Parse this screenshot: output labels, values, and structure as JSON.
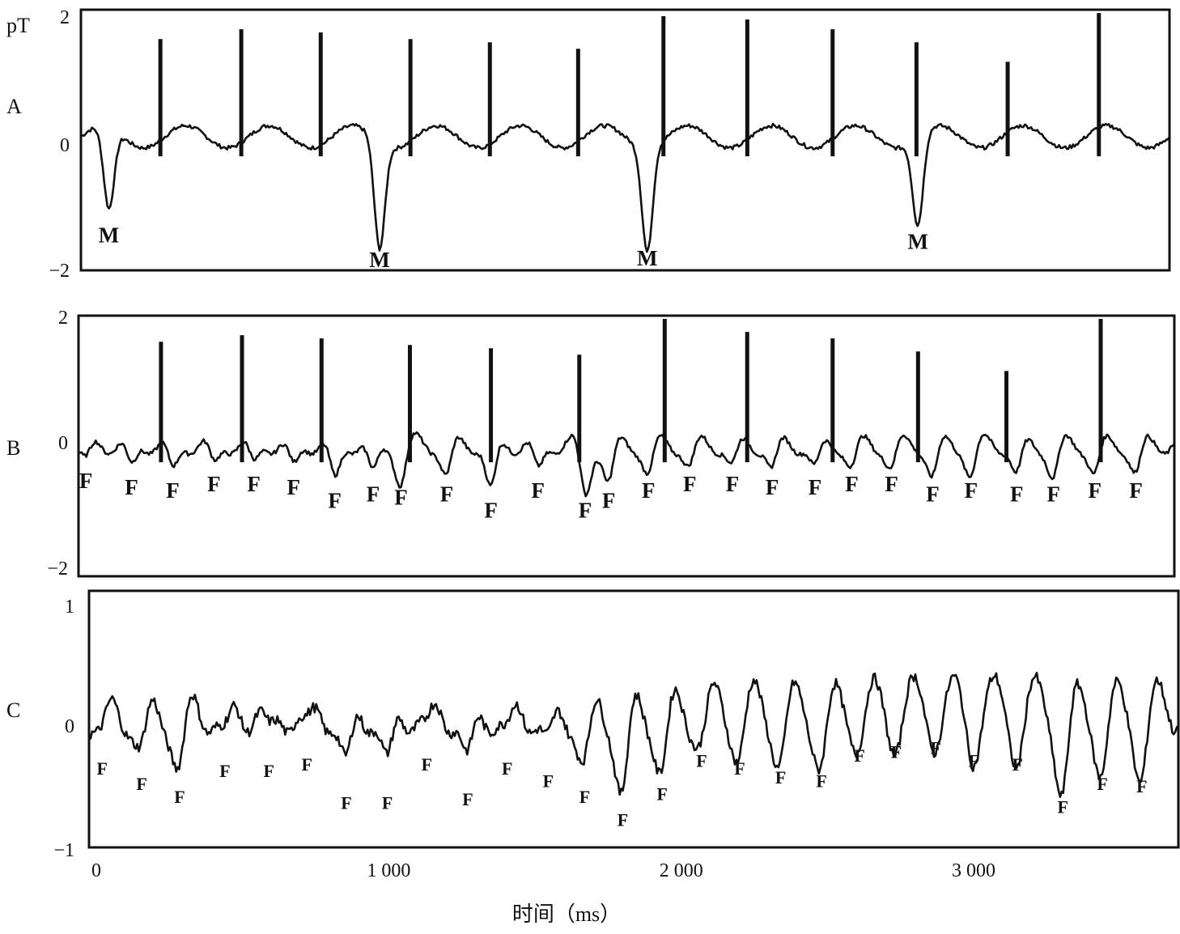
{
  "figure": {
    "unit_label": "pT",
    "xlabel": "时间（ms）",
    "x_ticks": [
      {
        "value": 0,
        "label": "0"
      },
      {
        "value": 1000,
        "label": "1 000"
      },
      {
        "value": 2000,
        "label": "2 000"
      },
      {
        "value": 3000,
        "label": "3 000"
      }
    ]
  },
  "chart_data": [
    {
      "type": "line",
      "panel": "A",
      "ylim": [
        -2,
        2
      ],
      "y_ticks": [
        {
          "value": 2,
          "label": "2"
        },
        {
          "value": 0,
          "label": "0"
        },
        {
          "value": -2,
          "label": "−2"
        }
      ],
      "xlim": [
        0,
        3700
      ],
      "spikes": [
        {
          "x": 270,
          "y": 1.55
        },
        {
          "x": 545,
          "y": 1.7
        },
        {
          "x": 815,
          "y": 1.65
        },
        {
          "x": 1120,
          "y": 1.55
        },
        {
          "x": 1390,
          "y": 1.5
        },
        {
          "x": 1690,
          "y": 1.4
        },
        {
          "x": 1980,
          "y": 1.9
        },
        {
          "x": 2265,
          "y": 1.85
        },
        {
          "x": 2555,
          "y": 1.7
        },
        {
          "x": 2840,
          "y": 1.5
        },
        {
          "x": 3150,
          "y": 1.2
        },
        {
          "x": 3460,
          "y": 1.95
        }
      ],
      "markers": [
        {
          "label": "M",
          "x": 95,
          "y": -1.2
        },
        {
          "label": "M",
          "x": 1015,
          "y": -1.6
        },
        {
          "label": "M",
          "x": 1925,
          "y": -1.55
        },
        {
          "label": "M",
          "x": 2845,
          "y": -1.3
        }
      ]
    },
    {
      "type": "line",
      "panel": "B",
      "ylim": [
        -2,
        2
      ],
      "y_ticks": [
        {
          "value": 2,
          "label": "2"
        },
        {
          "value": 0,
          "label": "0"
        },
        {
          "value": -2,
          "label": "−2"
        }
      ],
      "xlim": [
        0,
        3720
      ],
      "spikes": [
        {
          "x": 280,
          "y": 1.6
        },
        {
          "x": 555,
          "y": 1.7
        },
        {
          "x": 825,
          "y": 1.65
        },
        {
          "x": 1125,
          "y": 1.55
        },
        {
          "x": 1400,
          "y": 1.5
        },
        {
          "x": 1700,
          "y": 1.4
        },
        {
          "x": 1990,
          "y": 1.95
        },
        {
          "x": 2270,
          "y": 1.75
        },
        {
          "x": 2560,
          "y": 1.65
        },
        {
          "x": 2850,
          "y": 1.45
        },
        {
          "x": 3150,
          "y": 1.15
        },
        {
          "x": 3470,
          "y": 1.95
        }
      ],
      "markers": [
        {
          "label": "F",
          "x": 25,
          "y": -0.3
        },
        {
          "label": "F",
          "x": 180,
          "y": -0.4
        },
        {
          "label": "F",
          "x": 320,
          "y": -0.45
        },
        {
          "label": "F",
          "x": 460,
          "y": -0.35
        },
        {
          "label": "F",
          "x": 595,
          "y": -0.35
        },
        {
          "label": "F",
          "x": 730,
          "y": -0.4
        },
        {
          "label": "F",
          "x": 870,
          "y": -0.6
        },
        {
          "label": "F",
          "x": 1000,
          "y": -0.5
        },
        {
          "label": "F",
          "x": 1095,
          "y": -0.55
        },
        {
          "label": "F",
          "x": 1250,
          "y": -0.5
        },
        {
          "label": "F",
          "x": 1400,
          "y": -0.75
        },
        {
          "label": "F",
          "x": 1560,
          "y": -0.45
        },
        {
          "label": "F",
          "x": 1720,
          "y": -0.75
        },
        {
          "label": "F",
          "x": 1800,
          "y": -0.6
        },
        {
          "label": "F",
          "x": 1935,
          "y": -0.45
        },
        {
          "label": "F",
          "x": 2075,
          "y": -0.35
        },
        {
          "label": "F",
          "x": 2220,
          "y": -0.35
        },
        {
          "label": "F",
          "x": 2355,
          "y": -0.4
        },
        {
          "label": "F",
          "x": 2500,
          "y": -0.4
        },
        {
          "label": "F",
          "x": 2625,
          "y": -0.35
        },
        {
          "label": "F",
          "x": 2760,
          "y": -0.35
        },
        {
          "label": "F",
          "x": 2900,
          "y": -0.5
        },
        {
          "label": "F",
          "x": 3030,
          "y": -0.45
        },
        {
          "label": "F",
          "x": 3185,
          "y": -0.5
        },
        {
          "label": "F",
          "x": 3310,
          "y": -0.5
        },
        {
          "label": "F",
          "x": 3450,
          "y": -0.45
        },
        {
          "label": "F",
          "x": 3590,
          "y": -0.45
        }
      ]
    },
    {
      "type": "line",
      "panel": "C",
      "ylim": [
        -1,
        1
      ],
      "y_ticks": [
        {
          "value": 1,
          "label": "1"
        },
        {
          "value": 0,
          "label": "0"
        },
        {
          "value": -1,
          "label": "−1"
        }
      ],
      "xlim": [
        -25,
        3700
      ],
      "markers": [
        {
          "label": "F",
          "x": 20,
          "y": -0.28
        },
        {
          "label": "F",
          "x": 155,
          "y": -0.4
        },
        {
          "label": "F",
          "x": 285,
          "y": -0.5
        },
        {
          "label": "F",
          "x": 440,
          "y": -0.3
        },
        {
          "label": "F",
          "x": 590,
          "y": -0.3
        },
        {
          "label": "F",
          "x": 720,
          "y": -0.25
        },
        {
          "label": "F",
          "x": 855,
          "y": -0.55
        },
        {
          "label": "F",
          "x": 995,
          "y": -0.55
        },
        {
          "label": "F",
          "x": 1130,
          "y": -0.25
        },
        {
          "label": "F",
          "x": 1270,
          "y": -0.52
        },
        {
          "label": "F",
          "x": 1405,
          "y": -0.28
        },
        {
          "label": "F",
          "x": 1545,
          "y": -0.38
        },
        {
          "label": "F",
          "x": 1670,
          "y": -0.5
        },
        {
          "label": "F",
          "x": 1800,
          "y": -0.68
        },
        {
          "label": "F",
          "x": 1935,
          "y": -0.48
        },
        {
          "label": "F",
          "x": 2070,
          "y": -0.22
        },
        {
          "label": "F",
          "x": 2200,
          "y": -0.28
        },
        {
          "label": "F",
          "x": 2340,
          "y": -0.35
        },
        {
          "label": "F",
          "x": 2480,
          "y": -0.38
        },
        {
          "label": "F",
          "x": 2610,
          "y": -0.18
        },
        {
          "label": "F",
          "x": 2735,
          "y": -0.15
        },
        {
          "label": "F",
          "x": 2870,
          "y": -0.12
        },
        {
          "label": "F",
          "x": 3000,
          "y": -0.22
        },
        {
          "label": "F",
          "x": 3150,
          "y": -0.25
        },
        {
          "label": "F",
          "x": 3305,
          "y": -0.58
        },
        {
          "label": "F",
          "x": 3440,
          "y": -0.4
        },
        {
          "label": "F",
          "x": 3575,
          "y": -0.42
        }
      ]
    }
  ]
}
